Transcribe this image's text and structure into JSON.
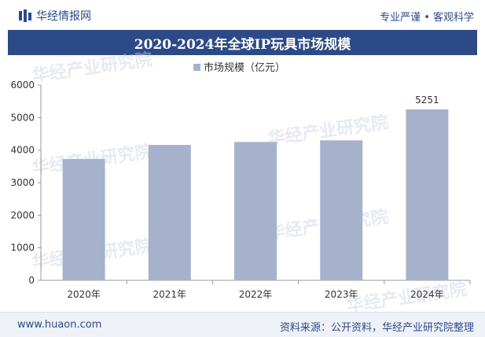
{
  "header": {
    "brand_name": "华经情报网",
    "tagline": "专业严谨 • 客观科学"
  },
  "watermark": "华经产业研究院",
  "chart_data": {
    "type": "bar",
    "title": "2020-2024年全球IP玩具市场规模",
    "legend": "市场规模（亿元）",
    "categories": [
      "2020年",
      "2021年",
      "2022年",
      "2023年",
      "2024年"
    ],
    "values": [
      3730,
      4160,
      4250,
      4300,
      5251
    ],
    "data_labels": [
      "",
      "",
      "",
      "",
      "5251"
    ],
    "yticks": [
      "0",
      "1000",
      "2000",
      "3000",
      "4000",
      "5000",
      "6000"
    ],
    "ylim": [
      0,
      6000
    ],
    "bar_color": "#a6b2cb"
  },
  "footer": {
    "website": "www.huaon.com",
    "source": "资料来源：公开资料，华经产业研究院整理"
  }
}
